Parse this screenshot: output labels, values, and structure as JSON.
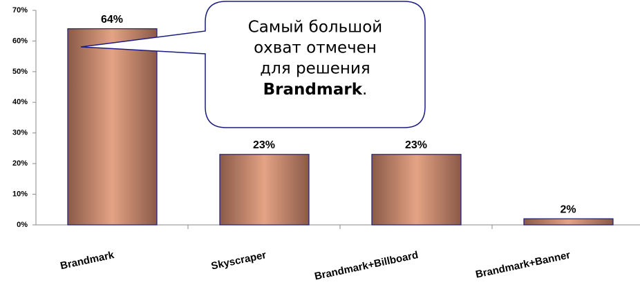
{
  "chart_data": {
    "type": "bar",
    "categories": [
      "Brandmark",
      "Skyscraper",
      "Brandmark+Billboard",
      "Brandmark+Banner"
    ],
    "values": [
      64,
      23,
      23,
      2
    ],
    "value_labels": [
      "64%",
      "23%",
      "23%",
      "2%"
    ],
    "ylim": [
      0,
      70
    ],
    "yticks": [
      {
        "value": 0,
        "label": "0%"
      },
      {
        "value": 10,
        "label": "10%"
      },
      {
        "value": 20,
        "label": "20%"
      },
      {
        "value": 30,
        "label": "30%"
      },
      {
        "value": 40,
        "label": "40%"
      },
      {
        "value": 50,
        "label": "50%"
      },
      {
        "value": 60,
        "label": "60%"
      },
      {
        "value": 70,
        "label": "70%"
      }
    ],
    "color": "#e4a384",
    "edge_color": "#8a5a48",
    "annotation": {
      "lines": [
        "Самый большой",
        "охват отмечен",
        "для решения"
      ],
      "bold": "Brandmark",
      "end": "."
    }
  }
}
